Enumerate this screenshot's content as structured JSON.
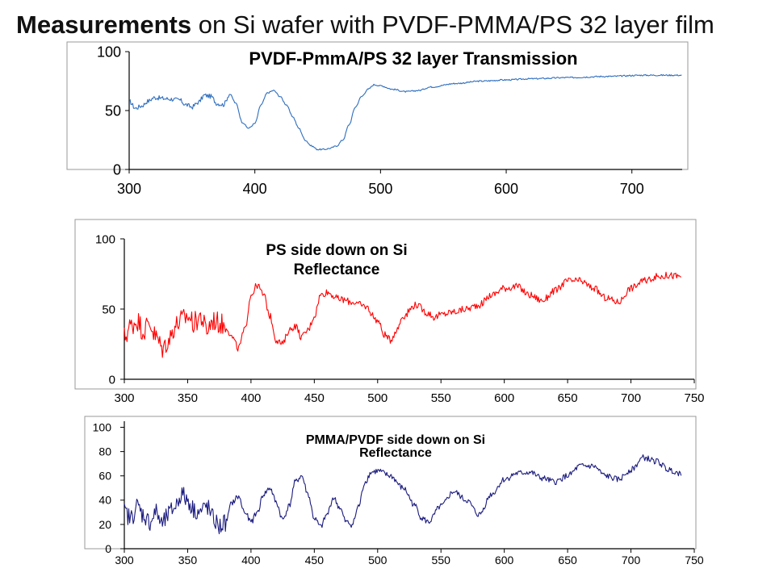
{
  "slide": {
    "title_bold": "Measurements",
    "title_rest": " on Si wafer with PVDF-PMMA/PS 32 layer film"
  },
  "chart_data": [
    {
      "type": "line",
      "title": "PVDF-PmmA/PS 32 layer Transmission",
      "title_lines": [
        "PVDF-PmmA/PS 32 layer Transmission"
      ],
      "xlabel": "",
      "ylabel": "",
      "xlim": [
        300,
        740
      ],
      "ylim": [
        0,
        100
      ],
      "x_ticks": [
        300,
        400,
        500,
        600,
        700
      ],
      "y_ticks": [
        0,
        50,
        100
      ],
      "grid": false,
      "color": "#2e6ebf",
      "noise": 1.0,
      "series": [
        {
          "x": [
            300,
            305,
            310,
            315,
            320,
            330,
            340,
            345,
            350,
            355,
            360,
            365,
            370,
            375,
            380,
            385,
            390,
            395,
            400,
            405,
            410,
            415,
            420,
            425,
            430,
            435,
            440,
            445,
            450,
            455,
            460,
            465,
            470,
            475,
            480,
            485,
            490,
            495,
            500,
            510,
            520,
            530,
            540,
            560,
            580,
            600,
            620,
            650,
            680,
            710,
            740
          ],
          "y": [
            58,
            52,
            54,
            58,
            61,
            60,
            59,
            55,
            53,
            57,
            63,
            62,
            56,
            55,
            64,
            56,
            40,
            35,
            39,
            55,
            65,
            67,
            62,
            55,
            45,
            35,
            25,
            20,
            17,
            17,
            18,
            20,
            25,
            38,
            53,
            62,
            68,
            72,
            71,
            68,
            66,
            67,
            70,
            73,
            75,
            76,
            77,
            78,
            79,
            80,
            80
          ]
        }
      ]
    },
    {
      "type": "line",
      "title": "PS side down on Si Reflectance",
      "title_lines": [
        "PS  side down on Si",
        "Reflectance"
      ],
      "xlabel": "",
      "ylabel": "",
      "xlim": [
        300,
        750
      ],
      "ylim": [
        0,
        100
      ],
      "x_ticks": [
        300,
        350,
        400,
        450,
        500,
        550,
        600,
        650,
        700,
        750
      ],
      "y_ticks": [
        0,
        50,
        100
      ],
      "grid": false,
      "color": "#ff0000",
      "noise": 2.5,
      "series": [
        {
          "x": [
            300,
            305,
            310,
            315,
            320,
            325,
            330,
            335,
            340,
            345,
            350,
            355,
            360,
            365,
            370,
            375,
            380,
            385,
            390,
            395,
            400,
            405,
            410,
            415,
            420,
            425,
            430,
            435,
            440,
            445,
            450,
            455,
            460,
            470,
            480,
            490,
            500,
            505,
            510,
            515,
            520,
            530,
            540,
            545,
            550,
            560,
            570,
            580,
            590,
            600,
            610,
            620,
            630,
            640,
            650,
            660,
            670,
            680,
            690,
            700,
            710,
            720,
            730,
            740
          ],
          "y": [
            30,
            38,
            42,
            35,
            40,
            30,
            22,
            28,
            38,
            42,
            45,
            40,
            45,
            35,
            42,
            40,
            38,
            30,
            22,
            35,
            60,
            67,
            60,
            45,
            28,
            25,
            35,
            38,
            30,
            35,
            45,
            60,
            62,
            57,
            55,
            52,
            42,
            32,
            28,
            35,
            45,
            53,
            47,
            44,
            46,
            48,
            50,
            53,
            60,
            65,
            66,
            60,
            56,
            63,
            70,
            70,
            65,
            58,
            55,
            65,
            70,
            73,
            74,
            73
          ]
        }
      ]
    },
    {
      "type": "line",
      "title": "PMMA/PVDF side down on Si Reflectance",
      "title_lines": [
        "PMMA/PVDF side down on Si",
        "Reflectance"
      ],
      "xlabel": "",
      "ylabel": "",
      "xlim": [
        300,
        750
      ],
      "ylim": [
        0,
        105
      ],
      "x_ticks": [
        300,
        350,
        400,
        450,
        500,
        550,
        600,
        650,
        700,
        750
      ],
      "y_ticks": [
        0,
        20,
        40,
        60,
        80,
        100
      ],
      "grid": false,
      "color": "#1a1a7e",
      "noise": 2.5,
      "series": [
        {
          "x": [
            300,
            305,
            310,
            315,
            320,
            325,
            330,
            335,
            340,
            345,
            350,
            355,
            360,
            365,
            370,
            375,
            380,
            385,
            390,
            395,
            400,
            405,
            410,
            415,
            420,
            425,
            430,
            435,
            440,
            445,
            450,
            455,
            460,
            465,
            470,
            475,
            480,
            485,
            490,
            495,
            500,
            510,
            520,
            530,
            535,
            540,
            550,
            560,
            570,
            580,
            590,
            600,
            610,
            620,
            630,
            640,
            650,
            660,
            670,
            680,
            690,
            700,
            710,
            720,
            730,
            740
          ],
          "y": [
            30,
            25,
            35,
            28,
            22,
            30,
            20,
            28,
            35,
            45,
            40,
            32,
            30,
            35,
            25,
            18,
            22,
            38,
            43,
            30,
            22,
            30,
            45,
            50,
            38,
            24,
            35,
            55,
            60,
            45,
            25,
            18,
            28,
            42,
            34,
            22,
            20,
            35,
            55,
            63,
            64,
            60,
            50,
            35,
            25,
            22,
            35,
            47,
            40,
            28,
            45,
            57,
            62,
            63,
            58,
            55,
            60,
            68,
            68,
            60,
            57,
            65,
            75,
            72,
            65,
            62
          ]
        }
      ]
    }
  ]
}
